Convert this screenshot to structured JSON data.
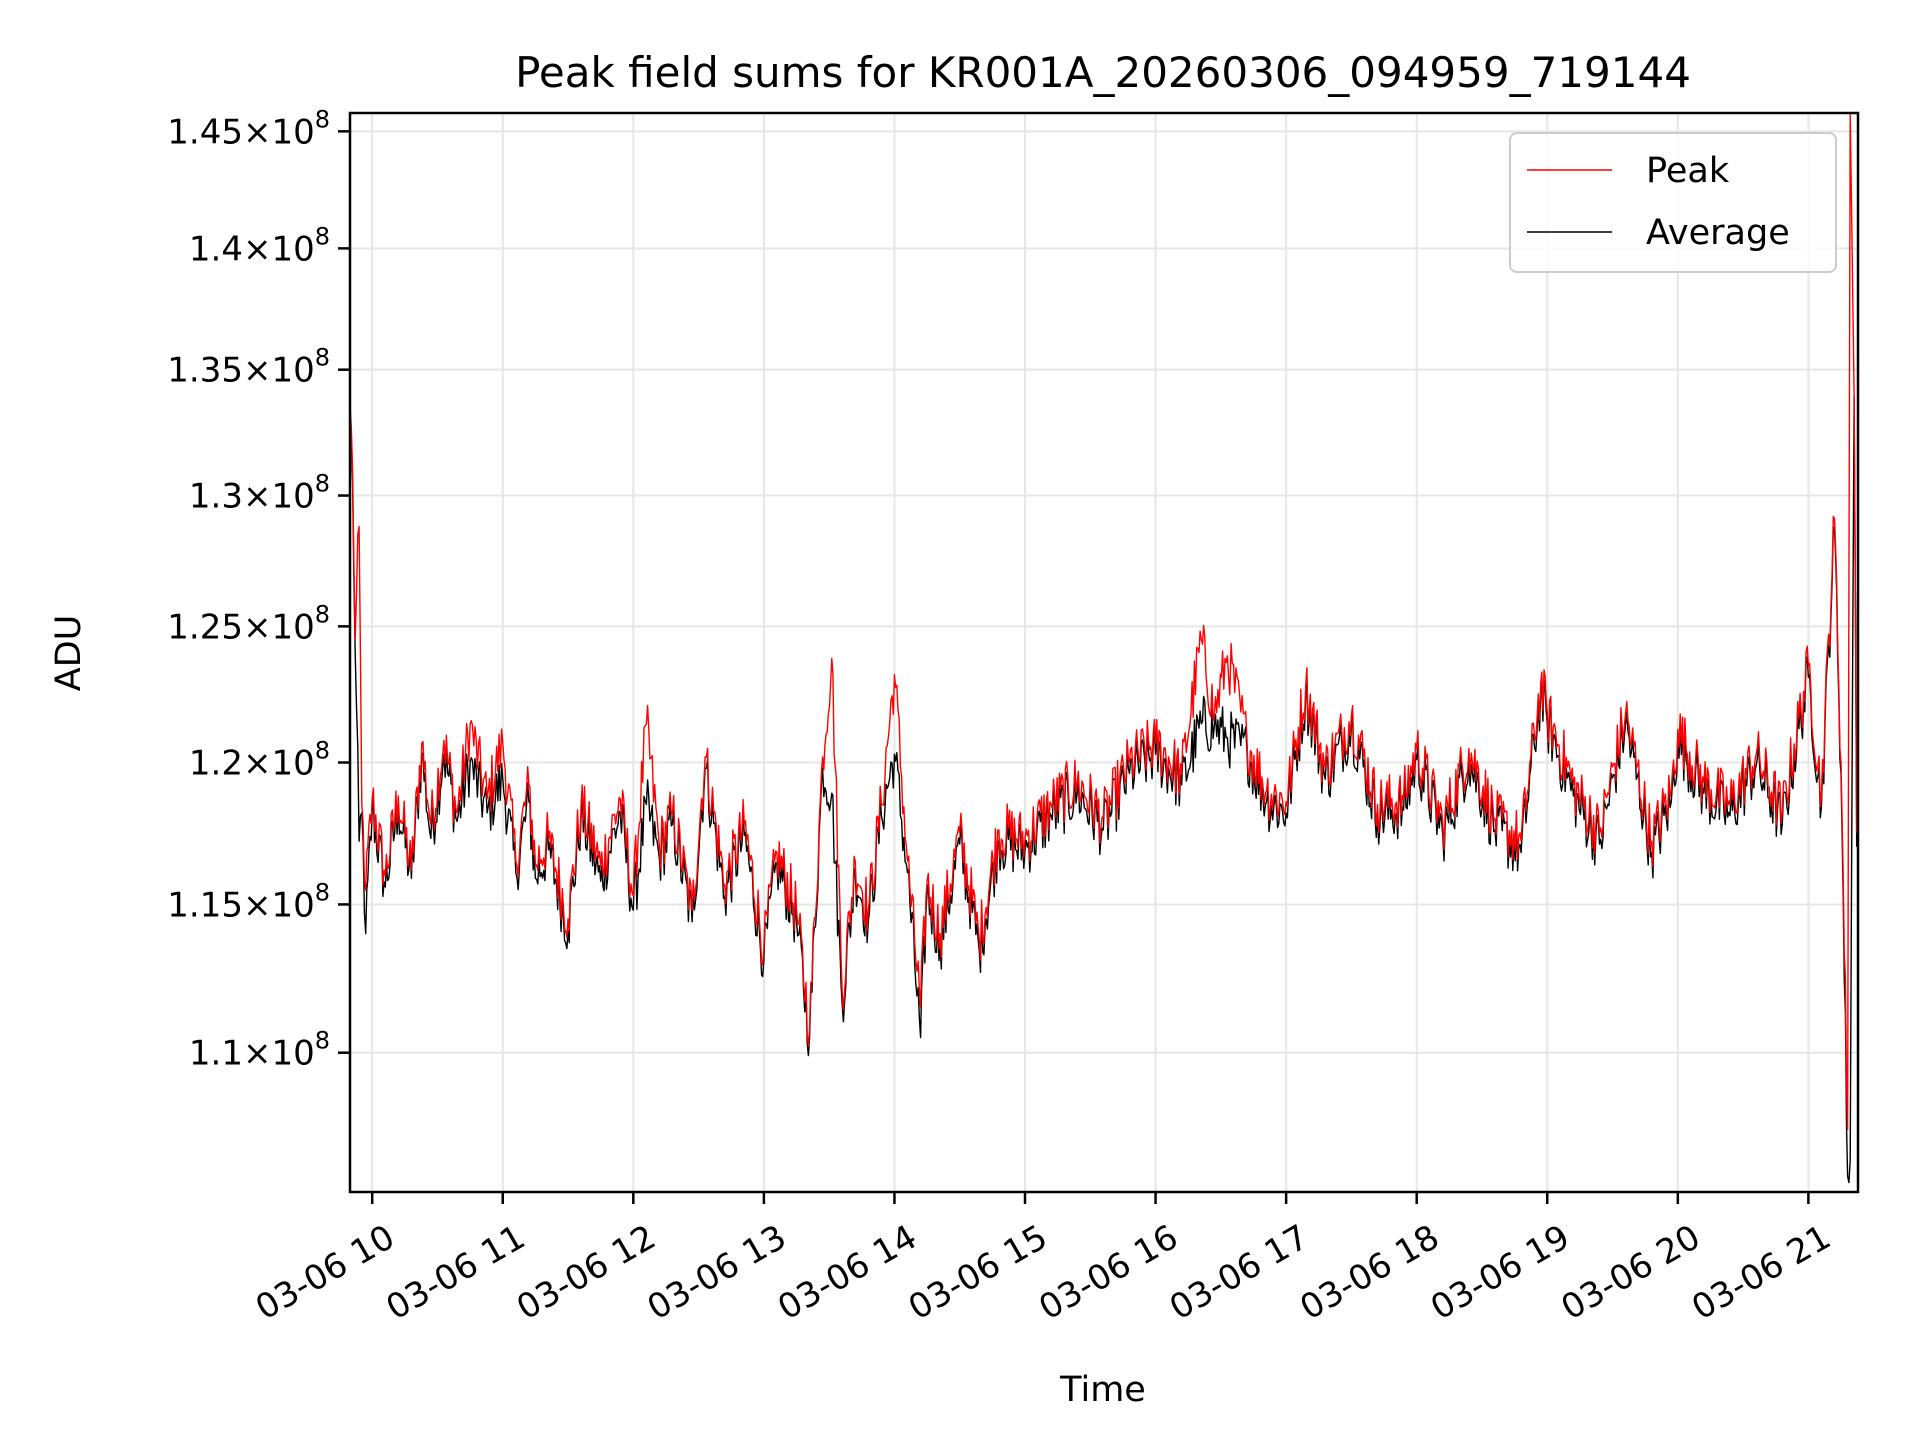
{
  "chart_data": {
    "type": "line",
    "title": "Peak field sums for KR001A_20260306_094959_719144",
    "xlabel": "Time",
    "ylabel": "ADU",
    "grid": true,
    "legend_position": "top-right",
    "y_scale": "log",
    "xlim": [
      9.83,
      21.38
    ],
    "ylim": [
      105500000,
      145800000
    ],
    "x_unit": "hours on 2026-03-06",
    "xticks": [
      {
        "value": 10,
        "label": "03-06 10"
      },
      {
        "value": 11,
        "label": "03-06 11"
      },
      {
        "value": 12,
        "label": "03-06 12"
      },
      {
        "value": 13,
        "label": "03-06 13"
      },
      {
        "value": 14,
        "label": "03-06 14"
      },
      {
        "value": 15,
        "label": "03-06 15"
      },
      {
        "value": 16,
        "label": "03-06 16"
      },
      {
        "value": 17,
        "label": "03-06 17"
      },
      {
        "value": 18,
        "label": "03-06 18"
      },
      {
        "value": 19,
        "label": "03-06 19"
      },
      {
        "value": 20,
        "label": "03-06 20"
      },
      {
        "value": 21,
        "label": "03-06 21"
      }
    ],
    "yticks": [
      {
        "value": 110000000,
        "mantissa": "1.1",
        "exponent": "8"
      },
      {
        "value": 115000000,
        "mantissa": "1.15",
        "exponent": "8"
      },
      {
        "value": 120000000,
        "mantissa": "1.2",
        "exponent": "8"
      },
      {
        "value": 125000000,
        "mantissa": "1.25",
        "exponent": "8"
      },
      {
        "value": 130000000,
        "mantissa": "1.3",
        "exponent": "8"
      },
      {
        "value": 135000000,
        "mantissa": "1.35",
        "exponent": "8"
      },
      {
        "value": 140000000,
        "mantissa": "1.4",
        "exponent": "8"
      },
      {
        "value": 145000000,
        "mantissa": "1.45",
        "exponent": "8"
      }
    ],
    "tick_times": "×10",
    "series": [
      {
        "name": "Peak",
        "color": "#ff0000",
        "x": [
          9.83,
          9.85,
          9.87,
          9.9,
          9.92,
          9.95,
          10.0,
          10.1,
          10.2,
          10.3,
          10.38,
          10.45,
          10.55,
          10.65,
          10.75,
          10.88,
          11.0,
          11.1,
          11.2,
          11.25,
          11.35,
          11.5,
          11.6,
          11.75,
          11.9,
          12.0,
          12.1,
          12.2,
          12.3,
          12.45,
          12.55,
          12.7,
          12.85,
          13.0,
          13.1,
          13.25,
          13.35,
          13.45,
          13.52,
          13.6,
          13.7,
          13.8,
          13.9,
          14.0,
          14.1,
          14.2,
          14.25,
          14.35,
          14.5,
          14.65,
          14.8,
          15.0,
          15.2,
          15.4,
          15.6,
          15.8,
          16.0,
          16.2,
          16.35,
          16.45,
          16.55,
          16.7,
          16.85,
          17.0,
          17.15,
          17.3,
          17.5,
          17.7,
          17.9,
          18.0,
          18.2,
          18.4,
          18.6,
          18.8,
          18.95,
          19.0,
          19.2,
          19.4,
          19.6,
          19.8,
          19.95,
          20.0,
          20.2,
          20.4,
          20.6,
          20.8,
          21.0,
          21.1,
          21.2,
          21.25,
          21.3,
          21.32,
          21.35,
          21.37
        ],
        "y": [
          133600000,
          131000000,
          124500000,
          128800000,
          118500000,
          115500000,
          118700000,
          116000000,
          118800000,
          116200000,
          120700000,
          117800000,
          120800000,
          118200000,
          121400000,
          118700000,
          120700000,
          116500000,
          119200000,
          116400000,
          117300000,
          114500000,
          118500000,
          116300000,
          118700000,
          115300000,
          121400000,
          117000000,
          118200000,
          114800000,
          120200000,
          115700000,
          117800000,
          113500000,
          116800000,
          114800000,
          110800000,
          120200000,
          123800000,
          112000000,
          116500000,
          114800000,
          118500000,
          123200000,
          116500000,
          111500000,
          115800000,
          114000000,
          117500000,
          113800000,
          117600000,
          117300000,
          118500000,
          119300000,
          118000000,
          120000000,
          120700000,
          119600000,
          124500000,
          121700000,
          123900000,
          120800000,
          119000000,
          118600000,
          122800000,
          119800000,
          121700000,
          118500000,
          118700000,
          120500000,
          117800000,
          120500000,
          118000000,
          117200000,
          122900000,
          121800000,
          119200000,
          117500000,
          121800000,
          117200000,
          119000000,
          121200000,
          119300000,
          118500000,
          120300000,
          118200000,
          123500000,
          118800000,
          129100000,
          120000000,
          107500000,
          145800000,
          134000000,
          117500000
        ]
      },
      {
        "name": "Average",
        "color": "#000000",
        "x": [
          9.83,
          9.85,
          9.87,
          9.9,
          9.92,
          9.95,
          10.0,
          10.1,
          10.2,
          10.3,
          10.38,
          10.45,
          10.55,
          10.65,
          10.75,
          10.88,
          11.0,
          11.1,
          11.2,
          11.25,
          11.35,
          11.5,
          11.6,
          11.75,
          11.9,
          12.0,
          12.1,
          12.2,
          12.3,
          12.45,
          12.55,
          12.7,
          12.85,
          13.0,
          13.1,
          13.25,
          13.35,
          13.45,
          13.52,
          13.6,
          13.7,
          13.8,
          13.9,
          14.0,
          14.1,
          14.2,
          14.25,
          14.35,
          14.5,
          14.65,
          14.8,
          15.0,
          15.2,
          15.4,
          15.6,
          15.8,
          16.0,
          16.2,
          16.35,
          16.45,
          16.55,
          16.7,
          16.85,
          17.0,
          17.15,
          17.3,
          17.5,
          17.7,
          17.9,
          18.0,
          18.2,
          18.4,
          18.6,
          18.8,
          18.95,
          19.0,
          19.2,
          19.4,
          19.6,
          19.8,
          19.95,
          20.0,
          20.2,
          20.4,
          20.6,
          20.8,
          21.0,
          21.1,
          21.2,
          21.25,
          21.3,
          21.32,
          21.35,
          21.37
        ],
        "y": [
          133000000,
          130500000,
          124000000,
          117200000,
          118200000,
          114000000,
          118300000,
          115600000,
          118400000,
          115900000,
          120300000,
          117300000,
          120300000,
          117900000,
          120000000,
          118200000,
          119400000,
          116100000,
          118600000,
          115900000,
          116900000,
          114100000,
          118100000,
          115800000,
          118200000,
          114800000,
          118500000,
          116600000,
          117800000,
          114400000,
          119800000,
          115300000,
          117400000,
          113100000,
          116400000,
          114400000,
          110500000,
          119800000,
          118900000,
          111600000,
          116100000,
          114400000,
          118100000,
          120300000,
          116100000,
          110500000,
          115400000,
          113600000,
          117100000,
          113400000,
          117200000,
          116900000,
          118100000,
          118900000,
          117600000,
          119600000,
          120300000,
          119200000,
          121400000,
          121300000,
          120900000,
          120400000,
          118600000,
          118200000,
          122400000,
          119400000,
          121300000,
          118100000,
          118300000,
          120100000,
          117400000,
          120100000,
          117600000,
          116800000,
          122500000,
          121400000,
          118800000,
          117100000,
          121400000,
          116800000,
          118600000,
          120800000,
          118900000,
          118100000,
          119900000,
          117800000,
          123100000,
          118400000,
          128700000,
          119600000,
          106000000,
          106500000,
          133900000,
          117000000
        ]
      }
    ]
  }
}
